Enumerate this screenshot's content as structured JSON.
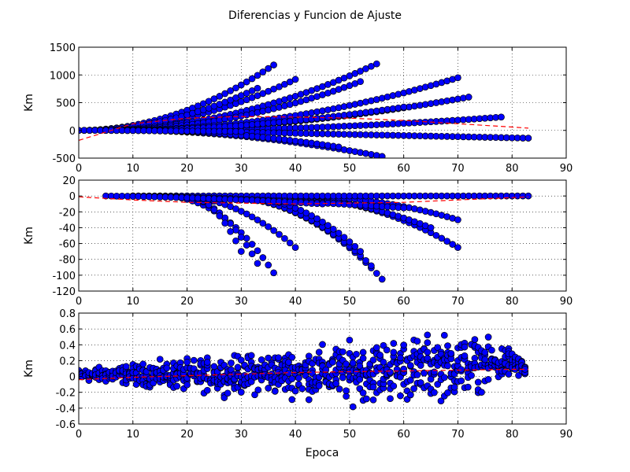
{
  "figure": {
    "title": "Diferencias y Funcion de Ajuste",
    "xlabel": "Epoca"
  },
  "colors": {
    "marker": "#0000ff",
    "marker_edge": "#000000",
    "fit": "#ff0000",
    "grid": "#000000"
  },
  "chart_data": [
    {
      "type": "scatter",
      "title": "",
      "ylabel": "Km",
      "xlim": [
        0,
        90
      ],
      "ylim": [
        -500,
        1500
      ],
      "xticks": [
        0,
        10,
        20,
        30,
        40,
        50,
        60,
        70,
        80,
        90
      ],
      "yticks": [
        -500,
        0,
        500,
        1000,
        1500
      ],
      "grid": true,
      "series": [
        {
          "kind": "points",
          "families": [
            {
              "x0": 0,
              "x1": 36,
              "y_end": 1180,
              "p": 2.0
            },
            {
              "x0": 0,
              "x1": 40,
              "y_end": 920,
              "p": 2.0
            },
            {
              "x0": 0,
              "x1": 33,
              "y_end": 760,
              "p": 2.0
            },
            {
              "x0": 2,
              "x1": 55,
              "y_end": 1200,
              "p": 2.0
            },
            {
              "x0": 4,
              "x1": 52,
              "y_end": 880,
              "p": 2.0
            },
            {
              "x0": 6,
              "x1": 70,
              "y_end": 950,
              "p": 2.0
            },
            {
              "x0": 10,
              "x1": 72,
              "y_end": 600,
              "p": 1.8
            },
            {
              "x0": 12,
              "x1": 78,
              "y_end": 240,
              "p": 2.0
            },
            {
              "x0": 8,
              "x1": 60,
              "y_end": 420,
              "p": 1.8
            },
            {
              "x0": 15,
              "x1": 83,
              "y_end": -140,
              "p": 1.0
            },
            {
              "x0": 10,
              "x1": 56,
              "y_end": -470,
              "p": 1.8
            },
            {
              "x0": 12,
              "x1": 48,
              "y_end": -300,
              "p": 1.8
            },
            {
              "x0": 5,
              "x1": 30,
              "y_end": -20,
              "p": 1.0
            }
          ]
        },
        {
          "kind": "fit",
          "x": [
            0,
            10,
            20,
            30,
            40,
            50,
            60,
            70,
            80,
            83
          ],
          "y": [
            -180,
            120,
            220,
            250,
            240,
            220,
            180,
            120,
            60,
            40
          ]
        }
      ]
    },
    {
      "type": "scatter",
      "title": "",
      "ylabel": "Km",
      "xlim": [
        0,
        90
      ],
      "ylim": [
        -120,
        20
      ],
      "xticks": [
        0,
        10,
        20,
        30,
        40,
        50,
        60,
        70,
        80,
        90
      ],
      "yticks": [
        -120,
        -100,
        -80,
        -60,
        -40,
        -20,
        0,
        20
      ],
      "grid": true,
      "series": [
        {
          "kind": "points",
          "families": [
            {
              "x0": 15,
              "x1": 36,
              "y_end": -97,
              "p": 2.2
            },
            {
              "x0": 18,
              "x1": 33,
              "y_end": -85,
              "p": 2.2
            },
            {
              "x0": 20,
              "x1": 30,
              "y_end": -70,
              "p": 2.0
            },
            {
              "x0": 18,
              "x1": 40,
              "y_end": -65,
              "p": 2.0
            },
            {
              "x0": 25,
              "x1": 56,
              "y_end": -105,
              "p": 2.2
            },
            {
              "x0": 25,
              "x1": 54,
              "y_end": -88,
              "p": 2.2
            },
            {
              "x0": 28,
              "x1": 52,
              "y_end": -70,
              "p": 2.2
            },
            {
              "x0": 35,
              "x1": 70,
              "y_end": -65,
              "p": 2.2
            },
            {
              "x0": 35,
              "x1": 65,
              "y_end": -40,
              "p": 2.0
            },
            {
              "x0": 40,
              "x1": 70,
              "y_end": -30,
              "p": 2.0
            },
            {
              "x0": 10,
              "x1": 83,
              "y_end": 0,
              "p": 1.0
            },
            {
              "x0": 10,
              "x1": 60,
              "y_end": -15,
              "p": 1.5
            },
            {
              "x0": 5,
              "x1": 45,
              "y_end": -10,
              "p": 1.5
            }
          ]
        },
        {
          "kind": "fit",
          "x": [
            0,
            10,
            20,
            30,
            40,
            50,
            60,
            70,
            80,
            83
          ],
          "y": [
            -1,
            -5,
            -8,
            -9,
            -10,
            -9,
            -8,
            -5,
            -2,
            -1
          ]
        }
      ]
    },
    {
      "type": "scatter",
      "title": "",
      "ylabel": "Km",
      "xlabel": "Epoca",
      "xlim": [
        0,
        90
      ],
      "ylim": [
        -0.6,
        0.8
      ],
      "xticks": [
        0,
        10,
        20,
        30,
        40,
        50,
        60,
        70,
        80,
        90
      ],
      "yticks": [
        -0.6,
        -0.4,
        -0.2,
        0.0,
        0.2,
        0.4,
        0.6,
        0.8
      ],
      "grid": true,
      "series": [
        {
          "kind": "cloud",
          "x": [
            0,
            10,
            20,
            30,
            40,
            50,
            60,
            70,
            80,
            83
          ],
          "y_low": [
            -0.08,
            -0.15,
            -0.25,
            -0.3,
            -0.35,
            -0.45,
            -0.45,
            -0.4,
            -0.1,
            0.0
          ],
          "y_high": [
            0.12,
            0.2,
            0.28,
            0.35,
            0.45,
            0.55,
            0.65,
            0.68,
            0.45,
            0.12
          ]
        },
        {
          "kind": "fit",
          "x": [
            0,
            10,
            20,
            30,
            40,
            50,
            60,
            70,
            80,
            83
          ],
          "y": [
            -0.04,
            -0.01,
            0.01,
            0.03,
            0.05,
            0.06,
            0.07,
            0.08,
            0.09,
            0.09
          ]
        }
      ]
    }
  ]
}
